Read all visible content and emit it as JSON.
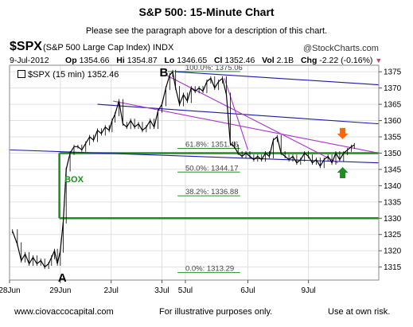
{
  "header": {
    "title": "S&P 500: 15-Minute Chart",
    "subtitle": "Please see the paragraph above for a description of this chart.",
    "symbol": "$SPX",
    "symbol_desc": "(S&P 500 Large Cap Index) INDX",
    "watermark": "@StockCharts.com"
  },
  "quote": {
    "date": "9-Jul-2012",
    "open_label": "Op",
    "open": "1354.66",
    "high_label": "Hi",
    "high": "1354.87",
    "low_label": "Lo",
    "low": "1346.65",
    "close_label": "Cl",
    "close": "1352.46",
    "vol_label": "Vol",
    "vol": "2.1B",
    "chg_label": "Chg",
    "chg": "-2.22 (-0.16%)"
  },
  "legend": {
    "text": "$SPX (15 min) 1352.46"
  },
  "footer": {
    "left": "www.ciovaccocapital.com",
    "mid": "For illustrative purposes only.",
    "right": "Use at own risk."
  },
  "colors": {
    "price": "#000000",
    "trend_blue": "#1a1aa8",
    "trend_purple": "#aa33cc",
    "box": "#1e8c1e",
    "fib": "#2e8b2e",
    "arrow_down": "#ff6600",
    "arrow_up": "#1e8c1e",
    "grid": "#e0e0e0"
  },
  "chart_data": {
    "type": "line",
    "title": "S&P 500: 15-Minute Chart",
    "ylim": [
      1311,
      1377
    ],
    "y_ticks": [
      1315,
      1320,
      1325,
      1330,
      1335,
      1340,
      1345,
      1350,
      1355,
      1360,
      1365,
      1370,
      1375
    ],
    "x_ticks": [
      {
        "label": "28Jun",
        "t": 0
      },
      {
        "label": "29Jun",
        "t": 2.6
      },
      {
        "label": "2Jul",
        "t": 5.2
      },
      {
        "label": "3Jul",
        "t": 7.8
      },
      {
        "label": "5Jul",
        "t": 9.0
      },
      {
        "label": "6Jul",
        "t": 12.2
      },
      {
        "label": "9Jul",
        "t": 15.3
      }
    ],
    "x_range": [
      0,
      18.9
    ],
    "grid": true,
    "series": [
      {
        "t": [
          0.15,
          0.4,
          0.6,
          0.8,
          1.0,
          1.2,
          1.4,
          1.6,
          1.8,
          2.0,
          2.15,
          2.3,
          2.45,
          2.6,
          2.75,
          2.9,
          3.1,
          3.3,
          3.5,
          3.7,
          3.9,
          4.1,
          4.3,
          4.5,
          4.7,
          4.9,
          5.1,
          5.25,
          5.4,
          5.6,
          5.8,
          6.0,
          6.2,
          6.4,
          6.6,
          6.8,
          7.0,
          7.2,
          7.4,
          7.6,
          7.8,
          8.0,
          8.2,
          8.35,
          8.5,
          8.7,
          8.9,
          9.1,
          9.3,
          9.5,
          9.7,
          9.9,
          10.1,
          10.3,
          10.5,
          10.7,
          10.9,
          11.1,
          11.3,
          11.5,
          11.7,
          11.9,
          12.1,
          12.3,
          12.5,
          12.7,
          12.9,
          13.1,
          13.3,
          13.5,
          13.7,
          13.9,
          14.1,
          14.3,
          14.5,
          14.7,
          14.9,
          15.1,
          15.3,
          15.5,
          15.7,
          15.9,
          16.1,
          16.3,
          16.5,
          16.7,
          16.9,
          17.1,
          17.3,
          17.5,
          17.65
        ],
        "values": [
          1326,
          1322,
          1317,
          1319,
          1316,
          1318,
          1316,
          1317,
          1315,
          1316,
          1318,
          1320,
          1316,
          1320,
          1329,
          1345,
          1350,
          1352,
          1352,
          1351,
          1353,
          1355,
          1354,
          1357,
          1356,
          1358,
          1357,
          1360,
          1362,
          1366,
          1359,
          1358,
          1360,
          1358,
          1359,
          1357,
          1358,
          1360,
          1358,
          1363,
          1365,
          1370,
          1374,
          1375,
          1370,
          1365,
          1368,
          1366,
          1370,
          1369,
          1370,
          1369,
          1372,
          1373,
          1370,
          1372,
          1373,
          1368,
          1353,
          1352,
          1350,
          1349,
          1350,
          1349,
          1348,
          1349,
          1348,
          1350,
          1349,
          1354,
          1355,
          1350,
          1349,
          1348,
          1349,
          1347,
          1348,
          1350,
          1349,
          1347,
          1348,
          1346,
          1348,
          1349,
          1347,
          1350,
          1348,
          1350,
          1351,
          1352,
          1352.5
        ]
      }
    ],
    "annotations": [
      {
        "text": "A",
        "t": 2.7,
        "y": 1312
      },
      {
        "text": "B",
        "t": 7.9,
        "y": 1375
      },
      {
        "text": "BOX",
        "t": 3.3,
        "y": 1342
      }
    ],
    "fib_levels": [
      {
        "label": "100.0%: 1375.06",
        "value": 1375.06
      },
      {
        "label": "61.8%: 1351.46",
        "value": 1351.46
      },
      {
        "label": "50.0%: 1344.17",
        "value": 1344.17
      },
      {
        "label": "38.2%: 1336.88",
        "value": 1336.88
      },
      {
        "label": "0.0%: 1313.29",
        "value": 1313.29
      }
    ],
    "box": {
      "t_start": 2.55,
      "t_end": 18.9,
      "y_low": 1330,
      "y_high": 1350
    },
    "trendlines": [
      {
        "color": "blue",
        "t1": 0,
        "y1": 1351,
        "t2": 18.9,
        "y2": 1347
      },
      {
        "color": "blue",
        "t1": 8.5,
        "y1": 1375,
        "t2": 18.9,
        "y2": 1371
      },
      {
        "color": "blue",
        "t1": 4.5,
        "y1": 1365,
        "t2": 18.9,
        "y2": 1359
      },
      {
        "color": "purple",
        "t1": 5.3,
        "y1": 1366,
        "t2": 18.9,
        "y2": 1350
      },
      {
        "color": "purple",
        "t1": 8.0,
        "y1": 1374,
        "t2": 16.8,
        "y2": 1347
      },
      {
        "color": "purple",
        "t1": 11.0,
        "y1": 1373,
        "t2": 12.2,
        "y2": 1351
      }
    ],
    "arrows": [
      {
        "direction": "down",
        "t": 17.05,
        "y": 1356
      },
      {
        "direction": "up",
        "t": 17.05,
        "y": 1344
      }
    ]
  }
}
